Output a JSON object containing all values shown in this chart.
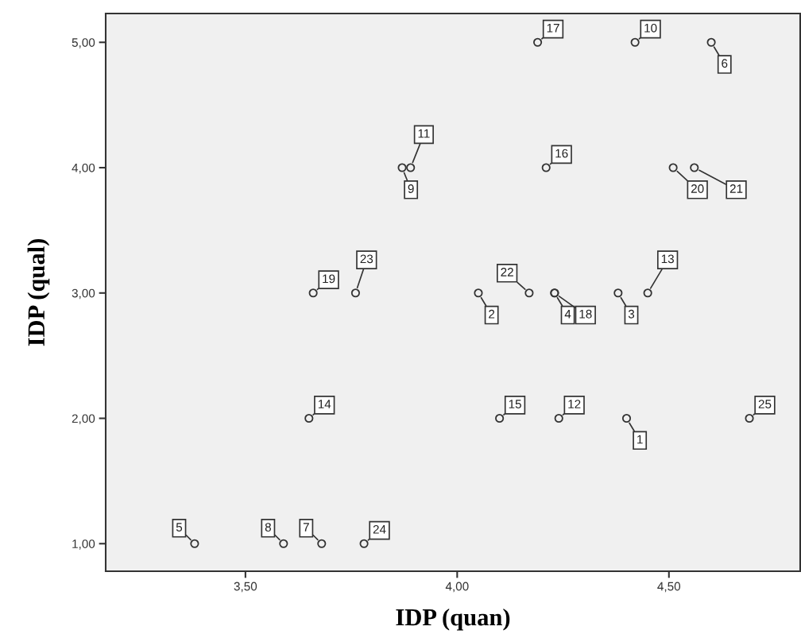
{
  "chart_data": {
    "type": "scatter",
    "xlabel": "IDP (quan)",
    "ylabel": "IDP (qual)",
    "x": [
      4.4,
      4.05,
      4.38,
      4.23,
      3.38,
      4.6,
      3.68,
      3.59,
      3.87,
      4.42,
      3.89,
      4.24,
      4.45,
      3.65,
      4.1,
      4.21,
      4.19,
      4.23,
      3.66,
      4.51,
      4.56,
      4.17,
      3.76,
      3.78,
      4.69
    ],
    "values": [
      2,
      3,
      3,
      3,
      1,
      5,
      1,
      1,
      4,
      5,
      4,
      2,
      3,
      2,
      2,
      4,
      5,
      3,
      3,
      4,
      4,
      3,
      3,
      1,
      2
    ],
    "color": "#333333",
    "marker": "circle",
    "grid": false,
    "legend": false,
    "xlim": [
      3.17,
      4.81
    ],
    "ylim": [
      0.78,
      5.23
    ],
    "xticks": [
      {
        "value": 3.5,
        "label": "3,50"
      },
      {
        "value": 4.0,
        "label": "4,00"
      },
      {
        "value": 4.5,
        "label": "4,50"
      }
    ],
    "yticks": [
      {
        "value": 1,
        "label": "1,00"
      },
      {
        "value": 2,
        "label": "2,00"
      },
      {
        "value": 3,
        "label": "3,00"
      },
      {
        "value": 4,
        "label": "4,00"
      },
      {
        "value": 5,
        "label": "5,00"
      }
    ],
    "annotations": [
      {
        "text": "1",
        "x": 4.4,
        "y": 2
      },
      {
        "text": "2",
        "x": 4.05,
        "y": 3
      },
      {
        "text": "3",
        "x": 4.38,
        "y": 3
      },
      {
        "text": "4",
        "x": 4.23,
        "y": 3
      },
      {
        "text": "5",
        "x": 3.38,
        "y": 1
      },
      {
        "text": "6",
        "x": 4.6,
        "y": 5
      },
      {
        "text": "7",
        "x": 3.68,
        "y": 1
      },
      {
        "text": "8",
        "x": 3.59,
        "y": 1
      },
      {
        "text": "9",
        "x": 3.87,
        "y": 4
      },
      {
        "text": "10",
        "x": 4.42,
        "y": 5
      },
      {
        "text": "11",
        "x": 3.89,
        "y": 4
      },
      {
        "text": "12",
        "x": 4.24,
        "y": 2
      },
      {
        "text": "13",
        "x": 4.45,
        "y": 3
      },
      {
        "text": "14",
        "x": 3.65,
        "y": 2
      },
      {
        "text": "15",
        "x": 4.1,
        "y": 2
      },
      {
        "text": "16",
        "x": 4.21,
        "y": 4
      },
      {
        "text": "17",
        "x": 4.19,
        "y": 5
      },
      {
        "text": "18",
        "x": 4.23,
        "y": 3
      },
      {
        "text": "19",
        "x": 3.66,
        "y": 3
      },
      {
        "text": "20",
        "x": 4.51,
        "y": 4
      },
      {
        "text": "21",
        "x": 4.56,
        "y": 4
      },
      {
        "text": "22",
        "x": 4.17,
        "y": 3
      },
      {
        "text": "23",
        "x": 3.76,
        "y": 3
      },
      {
        "text": "24",
        "x": 3.78,
        "y": 1
      },
      {
        "text": "25",
        "x": 4.69,
        "y": 2
      }
    ]
  }
}
